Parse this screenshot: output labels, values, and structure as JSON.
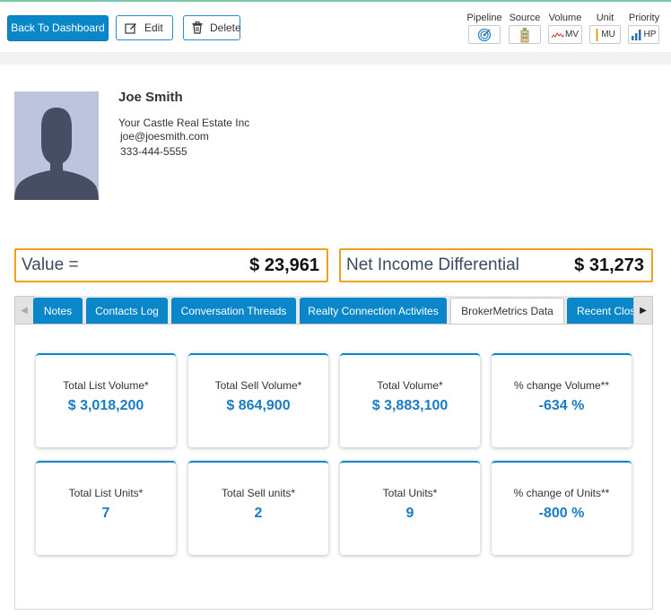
{
  "toolbar": {
    "back_label": "Back To Dashboard",
    "edit_label": "Edit",
    "delete_label": "Delete"
  },
  "metrics": [
    {
      "label": "Pipeline",
      "value": "",
      "icon": "target-icon"
    },
    {
      "label": "Source",
      "value": "",
      "icon": "building-icon"
    },
    {
      "label": "Volume",
      "value": "MV",
      "icon": "sparkline-icon"
    },
    {
      "label": "Unit",
      "value": "MU",
      "icon": "unit-bar-icon"
    },
    {
      "label": "Priority",
      "value": "HP",
      "icon": "signal-bars-icon"
    }
  ],
  "profile": {
    "name": "Joe Smith",
    "company": "Your Castle Real Estate Inc",
    "email": "joe@joesmith.com",
    "phone": "333-444-5555"
  },
  "value_boxes": [
    {
      "label": "Value =",
      "amount": "$ 23,961"
    },
    {
      "label": "Net Income Differential",
      "amount": "$ 31,273"
    }
  ],
  "tabs": [
    "Notes",
    "Contacts Log",
    "Conversation Threads",
    "Realty Connection Activites",
    "BrokerMetrics Data",
    "Recent Closings"
  ],
  "active_tab": "BrokerMetrics Data",
  "cards": [
    {
      "title": "Total List Volume*",
      "value": "$ 3,018,200"
    },
    {
      "title": "Total Sell Volume*",
      "value": "$ 864,900"
    },
    {
      "title": "Total Volume*",
      "value": "$ 3,883,100"
    },
    {
      "title": "% change Volume**",
      "value": "-634 %"
    },
    {
      "title": "Total List Units*",
      "value": "7"
    },
    {
      "title": "Total Sell units*",
      "value": "2"
    },
    {
      "title": "Total Units*",
      "value": "9"
    },
    {
      "title": "% change of Units**",
      "value": "-800 %"
    }
  ],
  "colors": {
    "primary": "#0a87c9",
    "highlight_border": "#f0a11b",
    "card_value": "#1a7cc1"
  }
}
